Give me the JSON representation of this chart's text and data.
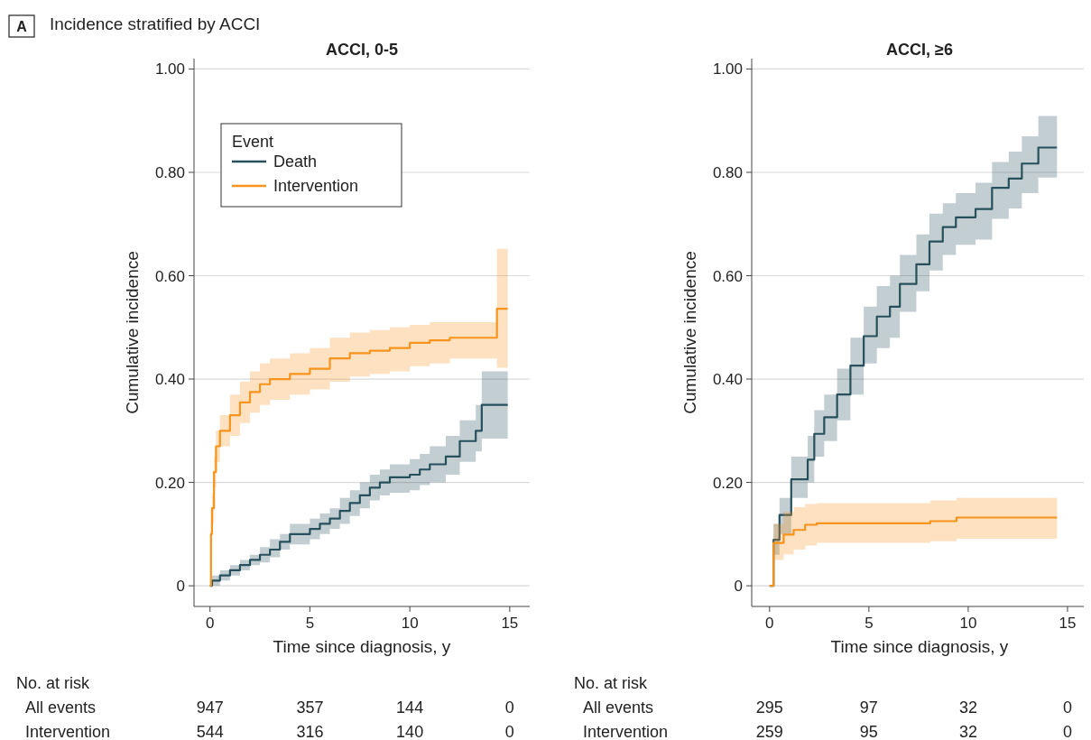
{
  "chart_data": [
    {
      "type": "step",
      "title": "ACCI, 0-5",
      "subtitle": "Incidence stratified by ACCI",
      "xlabel": "Time since diagnosis, y",
      "ylabel": "Cumulative incidence",
      "legend_title": "Event",
      "legend": "top left",
      "grid": "y",
      "xlim": [
        -0.8,
        16
      ],
      "xticks": [
        0,
        5,
        10,
        15
      ],
      "ylim": [
        -0.04,
        1.02
      ],
      "yticks": [
        0,
        {
          "value": 0.2,
          "label": "0.20"
        },
        {
          "value": 0.4,
          "label": "0.40"
        },
        {
          "value": 0.6,
          "label": "0.60"
        },
        {
          "value": 0.8,
          "label": "0.80"
        },
        {
          "value": 1.0,
          "label": "1.00"
        }
      ],
      "series": [
        {
          "name": "Death",
          "color": "#26505c",
          "x": [
            0,
            0.1,
            0.5,
            1,
            1.5,
            2,
            2.5,
            3,
            3.5,
            4,
            5,
            5.5,
            6,
            6.5,
            7,
            7.5,
            8,
            8.5,
            9,
            10,
            10.5,
            11,
            11.8,
            12.5,
            13.3,
            13.6,
            14.9
          ],
          "values": [
            0,
            0.01,
            0.02,
            0.03,
            0.04,
            0.05,
            0.06,
            0.07,
            0.085,
            0.1,
            0.11,
            0.12,
            0.13,
            0.145,
            0.16,
            0.175,
            0.19,
            0.2,
            0.21,
            0.215,
            0.225,
            0.235,
            0.25,
            0.28,
            0.3,
            0.35,
            0.35
          ],
          "lower": [
            0,
            0.0,
            0.01,
            0.02,
            0.03,
            0.04,
            0.045,
            0.055,
            0.07,
            0.08,
            0.09,
            0.1,
            0.11,
            0.12,
            0.135,
            0.15,
            0.165,
            0.175,
            0.18,
            0.185,
            0.195,
            0.2,
            0.215,
            0.24,
            0.26,
            0.285,
            0.285
          ],
          "upper": [
            0,
            0.02,
            0.03,
            0.04,
            0.05,
            0.06,
            0.075,
            0.09,
            0.1,
            0.12,
            0.13,
            0.14,
            0.15,
            0.17,
            0.185,
            0.2,
            0.215,
            0.225,
            0.235,
            0.245,
            0.255,
            0.27,
            0.29,
            0.32,
            0.35,
            0.415,
            0.415
          ]
        },
        {
          "name": "Intervention",
          "color": "#f7941d",
          "x": [
            0,
            0.05,
            0.1,
            0.2,
            0.3,
            0.5,
            1,
            1.5,
            2,
            2.5,
            3,
            4,
            5,
            6,
            7,
            8,
            9,
            10,
            11,
            12,
            14.36,
            14.9
          ],
          "values": [
            0,
            0.1,
            0.15,
            0.22,
            0.27,
            0.3,
            0.33,
            0.355,
            0.375,
            0.39,
            0.4,
            0.41,
            0.42,
            0.44,
            0.45,
            0.455,
            0.46,
            0.47,
            0.475,
            0.48,
            0.536,
            0.536
          ],
          "lower": [
            0,
            0.07,
            0.12,
            0.19,
            0.24,
            0.27,
            0.29,
            0.315,
            0.335,
            0.35,
            0.36,
            0.37,
            0.38,
            0.395,
            0.405,
            0.41,
            0.415,
            0.425,
            0.43,
            0.44,
            0.422,
            0.422
          ],
          "upper": [
            0,
            0.13,
            0.18,
            0.25,
            0.3,
            0.33,
            0.37,
            0.395,
            0.415,
            0.43,
            0.44,
            0.45,
            0.46,
            0.48,
            0.49,
            0.495,
            0.5,
            0.505,
            0.51,
            0.51,
            0.652,
            0.652
          ]
        }
      ],
      "annotations": [
        "A",
        "No. at risk",
        "All events",
        "Intervention",
        "947",
        "357",
        "144",
        "0",
        "544",
        "316",
        "140",
        "0"
      ]
    },
    {
      "type": "step",
      "title": "ACCI, ≥6",
      "xlabel": "Time since diagnosis, y",
      "ylabel": "Cumulative incidence",
      "grid": "y",
      "xlim": [
        -0.9,
        16
      ],
      "xticks": [
        0,
        5,
        10,
        15
      ],
      "ylim": [
        -0.04,
        1.02
      ],
      "yticks": [
        0,
        {
          "value": 0.2,
          "label": "0.20"
        },
        {
          "value": 0.4,
          "label": "0.40"
        },
        {
          "value": 0.6,
          "label": "0.60"
        },
        {
          "value": 0.8,
          "label": "0.80"
        },
        {
          "value": 1.0,
          "label": "1.00"
        }
      ],
      "series": [
        {
          "color": "#26505c",
          "x": [
            0,
            0.2,
            0.5,
            1.09,
            1.92,
            2.25,
            2.75,
            3.4,
            4.07,
            4.74,
            5.4,
            6.06,
            6.56,
            7.39,
            8.05,
            8.72,
            9.38,
            10.37,
            11.2,
            12.04,
            12.7,
            13.53,
            14.47
          ],
          "values": [
            0,
            0.089,
            0.137,
            0.206,
            0.244,
            0.294,
            0.326,
            0.37,
            0.426,
            0.483,
            0.521,
            0.54,
            0.584,
            0.622,
            0.666,
            0.694,
            0.713,
            0.729,
            0.77,
            0.788,
            0.817,
            0.848,
            0.848
          ],
          "lower": [
            0,
            0.06,
            0.1,
            0.17,
            0.2,
            0.25,
            0.28,
            0.32,
            0.37,
            0.43,
            0.46,
            0.48,
            0.53,
            0.57,
            0.61,
            0.64,
            0.66,
            0.67,
            0.71,
            0.73,
            0.76,
            0.79,
            0.79
          ],
          "upper": [
            0,
            0.12,
            0.17,
            0.25,
            0.29,
            0.34,
            0.37,
            0.42,
            0.48,
            0.54,
            0.58,
            0.6,
            0.64,
            0.68,
            0.72,
            0.74,
            0.76,
            0.78,
            0.82,
            0.84,
            0.87,
            0.909,
            0.909
          ]
        },
        {
          "color": "#f7941d",
          "x": [
            0,
            0.2,
            0.71,
            1.21,
            1.79,
            2.37,
            8.09,
            9.41,
            14.47
          ],
          "values": [
            0,
            0.083,
            0.099,
            0.108,
            0.118,
            0.121,
            0.125,
            0.132,
            0.132
          ],
          "lower": [
            0,
            0.05,
            0.061,
            0.07,
            0.078,
            0.083,
            0.086,
            0.091,
            0.091
          ],
          "upper": [
            0,
            0.12,
            0.143,
            0.152,
            0.158,
            0.16,
            0.165,
            0.17,
            0.17
          ]
        }
      ],
      "annotations": [
        "No. at risk",
        "All events",
        "Intervention",
        "295",
        "97",
        "32",
        "0",
        "259",
        "95",
        "32",
        "0"
      ]
    }
  ]
}
